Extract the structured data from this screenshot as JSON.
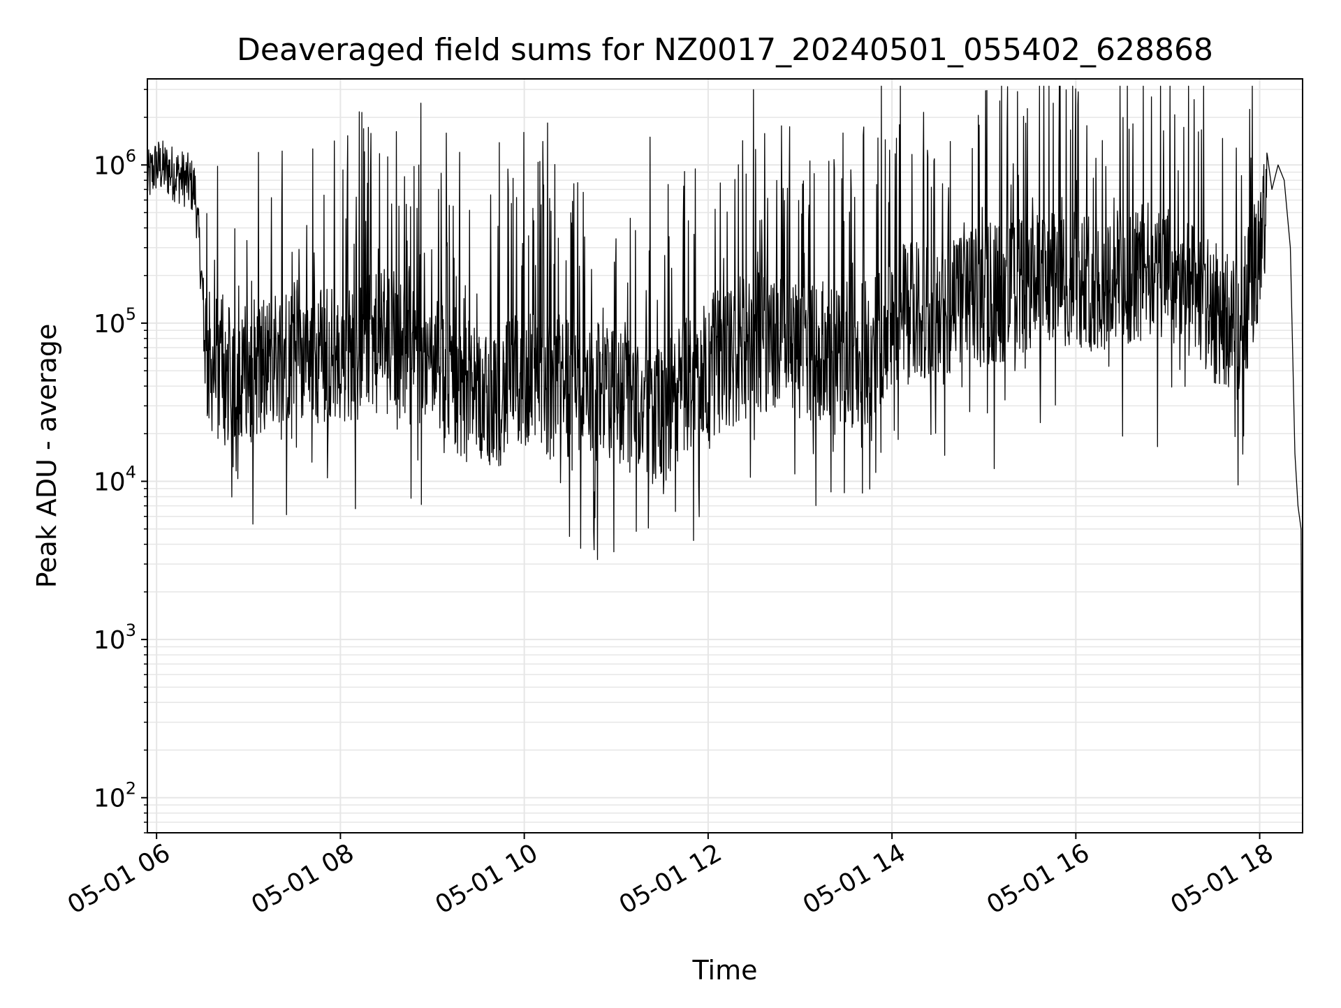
{
  "chart_data": {
    "type": "line",
    "title": "Deaveraged field sums for NZ0017_20240501_055402_628868",
    "xlabel": "Time",
    "ylabel": "Peak ADU - average",
    "y_scale": "log",
    "ylim": [
      60,
      3500000
    ],
    "xlim": [
      "2024-05-01 05:54",
      "2024-05-01 18:28"
    ],
    "x_ticks": [
      "05-01 06",
      "05-01 08",
      "05-01 10",
      "05-01 12",
      "05-01 14",
      "05-01 16",
      "05-01 18"
    ],
    "y_ticks": [
      {
        "base": "10",
        "exp": "2"
      },
      {
        "base": "10",
        "exp": "3"
      },
      {
        "base": "10",
        "exp": "4"
      },
      {
        "base": "10",
        "exp": "5"
      },
      {
        "base": "10",
        "exp": "6"
      }
    ],
    "grid": "on (major and minor)",
    "line_color": "#000000",
    "grid_color": "#e6e6e6",
    "series": [
      {
        "x": [
          "2024-05-01 05:54",
          "2024-05-01 06:00",
          "2024-05-01 06:10",
          "2024-05-01 06:20",
          "2024-05-01 06:25",
          "2024-05-01 06:28",
          "2024-05-01 06:33",
          "2024-05-01 06:40",
          "2024-05-01 06:50",
          "2024-05-01 07:00",
          "2024-05-01 07:15",
          "2024-05-01 07:30",
          "2024-05-01 07:45",
          "2024-05-01 08:00",
          "2024-05-01 08:15",
          "2024-05-01 08:30",
          "2024-05-01 08:45",
          "2024-05-01 09:00",
          "2024-05-01 09:15",
          "2024-05-01 09:30",
          "2024-05-01 09:45",
          "2024-05-01 10:00",
          "2024-05-01 10:15",
          "2024-05-01 10:30",
          "2024-05-01 10:45",
          "2024-05-01 11:00",
          "2024-05-01 11:15",
          "2024-05-01 11:30",
          "2024-05-01 11:45",
          "2024-05-01 12:00",
          "2024-05-01 12:15",
          "2024-05-01 12:30",
          "2024-05-01 12:45",
          "2024-05-01 13:00",
          "2024-05-01 13:15",
          "2024-05-01 13:30",
          "2024-05-01 13:45",
          "2024-05-01 14:00",
          "2024-05-01 14:15",
          "2024-05-01 14:30",
          "2024-05-01 14:45",
          "2024-05-01 15:00",
          "2024-05-01 15:15",
          "2024-05-01 15:30",
          "2024-05-01 15:45",
          "2024-05-01 16:00",
          "2024-05-01 16:15",
          "2024-05-01 16:30",
          "2024-05-01 16:45",
          "2024-05-01 17:00",
          "2024-05-01 17:15",
          "2024-05-01 17:30",
          "2024-05-01 17:45",
          "2024-05-01 18:00",
          "2024-05-01 18:08",
          "2024-05-01 18:12",
          "2024-05-01 18:16",
          "2024-05-01 18:20",
          "2024-05-01 18:23",
          "2024-05-01 18:25",
          "2024-05-01 18:27",
          "2024-05-01 18:28"
        ],
        "y": [
          800000,
          1000000,
          900000,
          800000,
          700000,
          300000,
          60000,
          50000,
          45000,
          50000,
          60000,
          70000,
          65000,
          60000,
          70000,
          75000,
          65000,
          55000,
          40000,
          35000,
          35000,
          45000,
          40000,
          40000,
          35000,
          35000,
          30000,
          25000,
          40000,
          50000,
          60000,
          75000,
          80000,
          70000,
          65000,
          60000,
          65000,
          100000,
          120000,
          110000,
          130000,
          150000,
          160000,
          170000,
          180000,
          200000,
          180000,
          200000,
          210000,
          200000,
          150000,
          120000,
          90000,
          300000,
          700000,
          1000000,
          800000,
          300000,
          15000,
          7000,
          5000,
          60
        ]
      }
    ]
  }
}
